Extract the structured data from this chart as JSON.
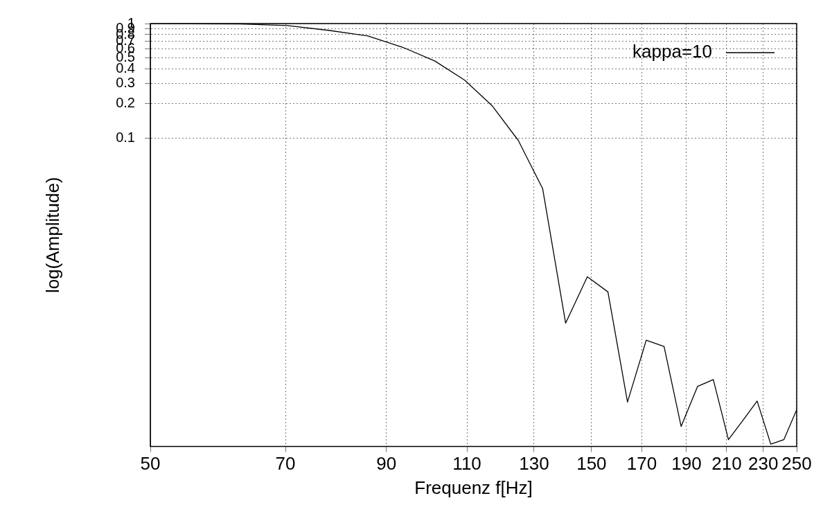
{
  "chart_data": {
    "type": "line",
    "xlabel": "Frequenz f[Hz]",
    "ylabel": "log(Amplitude)",
    "x": [
      50,
      54.69,
      62.5,
      70.31,
      78.13,
      85.94,
      93.75,
      101.56,
      109.38,
      117.19,
      125,
      132.81,
      140.63,
      148.44,
      156.25,
      164.06,
      171.88,
      179.69,
      187.5,
      195.31,
      203.13,
      210.94,
      218.75,
      226.56,
      234.38,
      242.19,
      250
    ],
    "series": [
      {
        "name": "kappa=10",
        "color": "#000000",
        "values": [
          1,
          0.995,
          0.99,
          0.96,
          0.87,
          0.78,
          0.62,
          0.47,
          0.32,
          0.19,
          0.095,
          0.036,
          0.0024,
          0.0061,
          0.0045,
          0.00049,
          0.0017,
          0.0015,
          0.0003,
          0.00067,
          0.00077,
          0.00023,
          0.00034,
          0.0005,
          0.00021,
          0.00023,
          0.00042
        ]
      }
    ],
    "log": "xy",
    "xlim": [
      50,
      250
    ],
    "xticks": [
      50,
      70,
      90,
      110,
      130,
      150,
      170,
      190,
      210,
      230,
      250
    ],
    "ylim": [
      0.0002,
      1
    ],
    "yticks": [
      0.1,
      0.2,
      0.3,
      0.4,
      0.5,
      0.6,
      0.7,
      0.8,
      0.9,
      1
    ],
    "grid": true,
    "legend": "top right",
    "marker": "none",
    "line_style": "solid"
  }
}
